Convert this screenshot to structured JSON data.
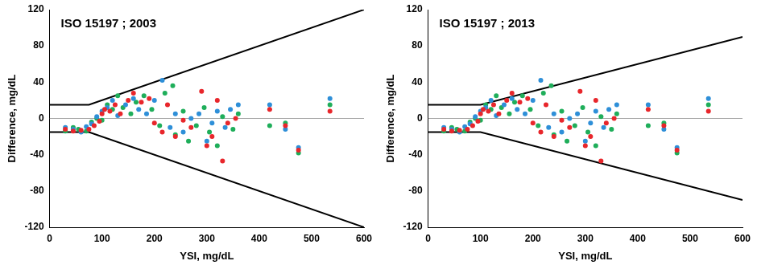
{
  "chart_data": [
    {
      "type": "scatter",
      "title": "ISO 15197 ; 2003",
      "x_label": "YSI, mg/dL",
      "y_label": "Difference, mg/dL",
      "xlim": [
        0,
        600
      ],
      "xticks": [
        0,
        100,
        200,
        300,
        400,
        500,
        600
      ],
      "ylim": [
        -120,
        120
      ],
      "yticks": [
        -120,
        -80,
        -40,
        0,
        40,
        80,
        120
      ],
      "grid": false,
      "series": [
        {
          "color": "#e8262b",
          "marker": "circle",
          "x": [
            30,
            45,
            60,
            75,
            85,
            95,
            100,
            105,
            115,
            125,
            135,
            150,
            160,
            175,
            190,
            200,
            215,
            225,
            240,
            255,
            270,
            290,
            300,
            310,
            320,
            330,
            340,
            355,
            420,
            450,
            475,
            535
          ],
          "values": [
            -12,
            -14,
            -13,
            -12,
            -8,
            -3,
            5,
            10,
            8,
            15,
            5,
            20,
            28,
            18,
            22,
            -5,
            -15,
            15,
            -20,
            -2,
            -10,
            30,
            -30,
            -20,
            20,
            -47,
            -5,
            0,
            10,
            -8,
            -35,
            8
          ]
        },
        {
          "color": "#2e8fd8",
          "marker": "circle",
          "x": [
            30,
            45,
            60,
            70,
            80,
            90,
            100,
            110,
            120,
            130,
            145,
            160,
            170,
            185,
            200,
            215,
            230,
            240,
            255,
            270,
            285,
            300,
            310,
            320,
            335,
            345,
            360,
            420,
            450,
            475,
            535
          ],
          "values": [
            -10,
            -12,
            -15,
            -9,
            -6,
            2,
            8,
            12,
            20,
            3,
            15,
            22,
            10,
            5,
            20,
            42,
            -10,
            5,
            -15,
            0,
            5,
            -25,
            -5,
            8,
            -10,
            10,
            15,
            15,
            -12,
            -32,
            22
          ]
        },
        {
          "color": "#1fae5a",
          "marker": "circle",
          "x": [
            30,
            45,
            55,
            70,
            80,
            90,
            100,
            110,
            120,
            130,
            140,
            155,
            165,
            180,
            195,
            210,
            220,
            235,
            240,
            255,
            265,
            280,
            295,
            305,
            320,
            330,
            350,
            360,
            420,
            450,
            475,
            535
          ],
          "values": [
            -14,
            -10,
            -12,
            -14,
            -4,
            0,
            -2,
            15,
            10,
            25,
            12,
            5,
            18,
            25,
            10,
            -8,
            28,
            36,
            -18,
            8,
            -25,
            -8,
            12,
            -15,
            -30,
            2,
            -12,
            5,
            -8,
            -5,
            -38,
            15
          ]
        },
        {
          "type": "line",
          "color": "#a6a6a6",
          "x": [
            0,
            600
          ],
          "values": [
            0,
            0
          ]
        },
        {
          "type": "line",
          "color": "#000000",
          "x": [
            0,
            75,
            600
          ],
          "values": [
            15,
            15,
            120
          ]
        },
        {
          "type": "line",
          "color": "#000000",
          "x": [
            0,
            75,
            600
          ],
          "values": [
            -15,
            -15,
            -120
          ]
        }
      ]
    },
    {
      "type": "scatter",
      "title": "ISO 15197 ; 2013",
      "x_label": "YSI, mg/dL",
      "y_label": "Difference, mg/dL",
      "xlim": [
        0,
        600
      ],
      "xticks": [
        0,
        100,
        200,
        300,
        400,
        500,
        600
      ],
      "ylim": [
        -120,
        120
      ],
      "yticks": [
        -120,
        -80,
        -40,
        0,
        40,
        80,
        120
      ],
      "grid": false,
      "series": [
        {
          "color": "#e8262b",
          "marker": "circle",
          "x": [
            30,
            45,
            60,
            75,
            85,
            95,
            100,
            105,
            115,
            125,
            135,
            150,
            160,
            175,
            190,
            200,
            215,
            225,
            240,
            255,
            270,
            290,
            300,
            310,
            320,
            330,
            340,
            355,
            420,
            450,
            475,
            535
          ],
          "values": [
            -12,
            -14,
            -13,
            -12,
            -8,
            -3,
            5,
            10,
            8,
            15,
            5,
            20,
            28,
            18,
            22,
            -5,
            -15,
            15,
            -20,
            -2,
            -10,
            30,
            -30,
            -20,
            20,
            -47,
            -5,
            0,
            10,
            -8,
            -35,
            8
          ]
        },
        {
          "color": "#2e8fd8",
          "marker": "circle",
          "x": [
            30,
            45,
            60,
            70,
            80,
            90,
            100,
            110,
            120,
            130,
            145,
            160,
            170,
            185,
            200,
            215,
            230,
            240,
            255,
            270,
            285,
            300,
            310,
            320,
            335,
            345,
            360,
            420,
            450,
            475,
            535
          ],
          "values": [
            -10,
            -12,
            -15,
            -9,
            -6,
            2,
            8,
            12,
            20,
            3,
            15,
            22,
            10,
            5,
            20,
            42,
            -10,
            5,
            -15,
            0,
            5,
            -25,
            -5,
            8,
            -10,
            10,
            15,
            15,
            -12,
            -32,
            22
          ]
        },
        {
          "color": "#1fae5a",
          "marker": "circle",
          "x": [
            30,
            45,
            55,
            70,
            80,
            90,
            100,
            110,
            120,
            130,
            140,
            155,
            165,
            180,
            195,
            210,
            220,
            235,
            240,
            255,
            265,
            280,
            295,
            305,
            320,
            330,
            350,
            360,
            420,
            450,
            475,
            535
          ],
          "values": [
            -14,
            -10,
            -12,
            -14,
            -4,
            0,
            -2,
            15,
            10,
            25,
            12,
            5,
            18,
            25,
            10,
            -8,
            28,
            36,
            -18,
            8,
            -25,
            -8,
            12,
            -15,
            -30,
            2,
            -12,
            5,
            -8,
            -5,
            -38,
            15
          ]
        },
        {
          "type": "line",
          "color": "#a6a6a6",
          "x": [
            0,
            600
          ],
          "values": [
            0,
            0
          ]
        },
        {
          "type": "line",
          "color": "#000000",
          "x": [
            0,
            100,
            600
          ],
          "values": [
            15,
            15,
            90
          ]
        },
        {
          "type": "line",
          "color": "#000000",
          "x": [
            0,
            100,
            600
          ],
          "values": [
            -15,
            -15,
            -90
          ]
        }
      ]
    }
  ]
}
